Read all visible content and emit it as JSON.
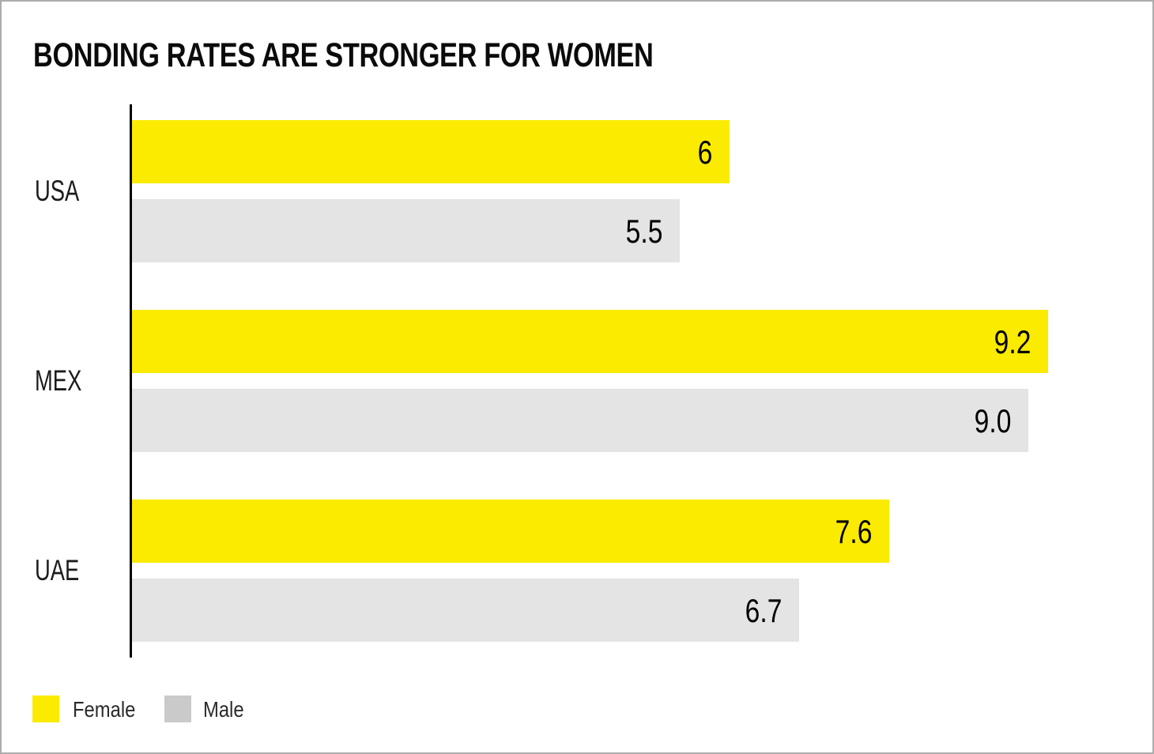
{
  "chart_data": {
    "type": "bar",
    "orientation": "horizontal",
    "title": "BONDING RATES ARE STRONGER FOR WOMEN",
    "categories": [
      "USA",
      "MEX",
      "UAE"
    ],
    "series": [
      {
        "name": "Female",
        "values": [
          6,
          9.2,
          7.6
        ],
        "labels": [
          "6",
          "9.2",
          "7.6"
        ],
        "color": "#FAEB00"
      },
      {
        "name": "Male",
        "values": [
          5.5,
          9.0,
          6.7
        ],
        "labels": [
          "5.5",
          "9.0",
          "6.7"
        ],
        "color": "#E4E4E4"
      }
    ],
    "xlabel": "",
    "ylabel": "",
    "xlim": [
      0,
      10.3
    ],
    "grid": false,
    "value_labels": "inside-end",
    "legend_position": "bottom-left"
  },
  "legend": {
    "items": [
      {
        "label": "Female",
        "color": "#FAEB00"
      },
      {
        "label": "Male",
        "color": "#CACACA"
      }
    ]
  },
  "colors": {
    "female_bar": "#FAEB00",
    "male_bar": "#E4E4E4",
    "male_legend_swatch": "#CACACA",
    "axis": "#000000",
    "value_text": "#000000",
    "title_text": "#0B0B0B",
    "category_text": "#1C1C1C",
    "frame_border": "#ACACAC",
    "background": "#FFFFFF"
  }
}
